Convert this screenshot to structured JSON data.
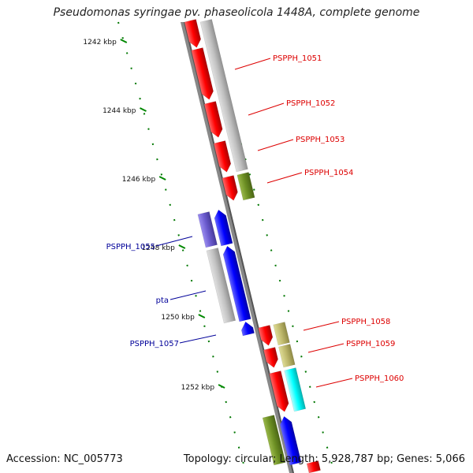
{
  "header": {
    "title": "Pseudomonas syringae pv. phaseolicola 1448A, complete genome"
  },
  "footer": {
    "accession": "Accession: NC_005773",
    "topology": "Topology: circular; Length: 5,928,787 bp; Genes: 5,066"
  },
  "scale": {
    "ticks": [
      {
        "label": "1242 kbp"
      },
      {
        "label": "1244 kbp"
      },
      {
        "label": "1246 kbp"
      },
      {
        "label": "1248 kbp"
      },
      {
        "label": "1250 kbp"
      },
      {
        "label": "1252 kbp"
      }
    ]
  },
  "genes": [
    {
      "label": "PSPPH_1051",
      "strand": "forward",
      "color": "#dd0000"
    },
    {
      "label": "PSPPH_1052",
      "strand": "forward",
      "color": "#dd0000"
    },
    {
      "label": "PSPPH_1053",
      "strand": "forward",
      "color": "#dd0000"
    },
    {
      "label": "PSPPH_1054",
      "strand": "forward",
      "color": "#dd0000"
    },
    {
      "label": "PSPPH_1055",
      "strand": "reverse",
      "color": "#000099"
    },
    {
      "label": "pta",
      "strand": "reverse",
      "color": "#000099"
    },
    {
      "label": "PSPPH_1057",
      "strand": "reverse",
      "color": "#000099"
    },
    {
      "label": "PSPPH_1058",
      "strand": "forward",
      "color": "#dd0000"
    },
    {
      "label": "PSPPH_1059",
      "strand": "forward",
      "color": "#dd0000"
    },
    {
      "label": "PSPPH_1060",
      "strand": "forward",
      "color": "#dd0000"
    }
  ],
  "colors": {
    "forward_gene": "#ff0000",
    "reverse_gene": "#0000ff",
    "backbone": "#888888",
    "tick": "#008800",
    "rna_gray": "#c0c0c0",
    "cog_olive": "#6b8e23",
    "cog_khaki": "#bdb76b",
    "cog_slate": "#6a5acd",
    "cog_cyan": "#00ffff"
  }
}
